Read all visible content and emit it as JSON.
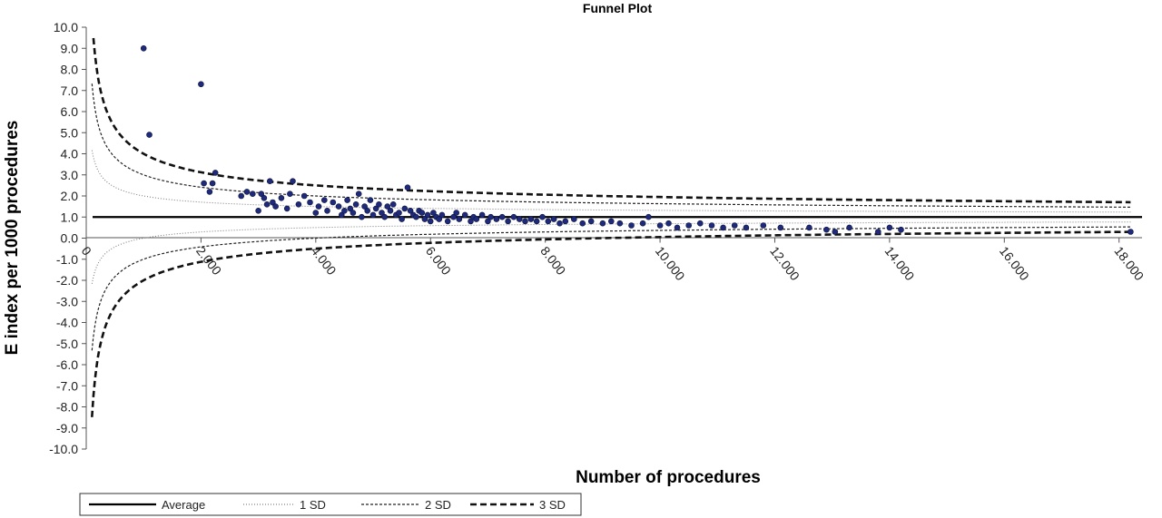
{
  "chart_data": {
    "type": "scatter",
    "title": "Funnel Plot",
    "xlabel": "Number of procedures",
    "ylabel": "E index per 1000  procedures",
    "xlim": [
      0,
      18400
    ],
    "ylim": [
      -10,
      10
    ],
    "x_ticks": [
      0,
      2000,
      4000,
      6000,
      8000,
      10000,
      12000,
      14000,
      16000,
      18000
    ],
    "x_tick_labels": [
      "0",
      "2.000",
      "4.000",
      "6.000",
      "8.000",
      "10.000",
      "12.000",
      "14.000",
      "16.000",
      "18.000"
    ],
    "y_ticks": [
      10,
      9,
      8,
      7,
      6,
      5,
      4,
      3,
      2,
      1,
      0,
      -1,
      -2,
      -3,
      -4,
      -5,
      -6,
      -7,
      -8,
      -9,
      -10
    ],
    "y_tick_labels": [
      "10.0",
      "9.0",
      "8.0",
      "7.0",
      "6.0",
      "5.0",
      "4.0",
      "3.0",
      "2.0",
      "1.0",
      "0.0",
      "-1.0",
      "-2.0",
      "-3.0",
      "-4.0",
      "-5.0",
      "-6.0",
      "-7.0",
      "-8.0",
      "-9.0",
      "-10.0"
    ],
    "average": 1.0,
    "sd_per_unit_at_1000_procedures": 1.0,
    "legend": [
      {
        "name": "Average",
        "style": "solid"
      },
      {
        "name": "1 SD",
        "style": "dotted"
      },
      {
        "name": "2 SD",
        "style": "dashed"
      },
      {
        "name": "3 SD",
        "style": "thick-dashed"
      }
    ],
    "legend_position": "bottom-left",
    "point_color": "#1f2a7a",
    "points": [
      [
        1000,
        9.0
      ],
      [
        1100,
        4.9
      ],
      [
        2000,
        7.3
      ],
      [
        2050,
        2.6
      ],
      [
        2150,
        2.2
      ],
      [
        2200,
        2.6
      ],
      [
        2250,
        3.1
      ],
      [
        2700,
        2.0
      ],
      [
        2800,
        2.2
      ],
      [
        2900,
        2.1
      ],
      [
        3000,
        1.3
      ],
      [
        3050,
        2.1
      ],
      [
        3100,
        1.9
      ],
      [
        3150,
        1.6
      ],
      [
        3200,
        2.7
      ],
      [
        3250,
        1.7
      ],
      [
        3300,
        1.5
      ],
      [
        3400,
        1.9
      ],
      [
        3500,
        1.4
      ],
      [
        3550,
        2.1
      ],
      [
        3600,
        2.7
      ],
      [
        3700,
        1.6
      ],
      [
        3800,
        2.0
      ],
      [
        3900,
        1.7
      ],
      [
        4000,
        1.2
      ],
      [
        4050,
        1.5
      ],
      [
        4150,
        1.8
      ],
      [
        4200,
        1.3
      ],
      [
        4300,
        1.7
      ],
      [
        4400,
        1.5
      ],
      [
        4450,
        1.1
      ],
      [
        4500,
        1.3
      ],
      [
        4550,
        1.8
      ],
      [
        4600,
        1.4
      ],
      [
        4650,
        1.2
      ],
      [
        4700,
        1.6
      ],
      [
        4750,
        2.1
      ],
      [
        4800,
        1.0
      ],
      [
        4850,
        1.5
      ],
      [
        4900,
        1.3
      ],
      [
        4950,
        1.8
      ],
      [
        5000,
        1.1
      ],
      [
        5050,
        1.4
      ],
      [
        5100,
        1.6
      ],
      [
        5150,
        1.2
      ],
      [
        5200,
        1.0
      ],
      [
        5250,
        1.5
      ],
      [
        5300,
        1.3
      ],
      [
        5350,
        1.6
      ],
      [
        5400,
        1.1
      ],
      [
        5450,
        1.2
      ],
      [
        5500,
        0.9
      ],
      [
        5550,
        1.4
      ],
      [
        5600,
        2.4
      ],
      [
        5650,
        1.3
      ],
      [
        5700,
        1.1
      ],
      [
        5750,
        1.0
      ],
      [
        5800,
        1.3
      ],
      [
        5850,
        1.2
      ],
      [
        5900,
        0.9
      ],
      [
        5950,
        1.1
      ],
      [
        6000,
        0.8
      ],
      [
        6050,
        1.2
      ],
      [
        6100,
        1.0
      ],
      [
        6150,
        0.9
      ],
      [
        6200,
        1.1
      ],
      [
        6300,
        0.8
      ],
      [
        6400,
        1.0
      ],
      [
        6450,
        1.2
      ],
      [
        6500,
        0.9
      ],
      [
        6600,
        1.1
      ],
      [
        6700,
        0.8
      ],
      [
        6750,
        1.0
      ],
      [
        6800,
        0.9
      ],
      [
        6900,
        1.1
      ],
      [
        7000,
        0.8
      ],
      [
        7050,
        1.0
      ],
      [
        7150,
        0.9
      ],
      [
        7250,
        1.0
      ],
      [
        7350,
        0.8
      ],
      [
        7450,
        1.0
      ],
      [
        7550,
        0.9
      ],
      [
        7650,
        0.8
      ],
      [
        7750,
        0.9
      ],
      [
        7850,
        0.8
      ],
      [
        7950,
        1.0
      ],
      [
        8050,
        0.8
      ],
      [
        8150,
        0.9
      ],
      [
        8250,
        0.7
      ],
      [
        8350,
        0.8
      ],
      [
        8500,
        0.9
      ],
      [
        8650,
        0.7
      ],
      [
        8800,
        0.8
      ],
      [
        9000,
        0.7
      ],
      [
        9150,
        0.8
      ],
      [
        9300,
        0.7
      ],
      [
        9500,
        0.6
      ],
      [
        9700,
        0.7
      ],
      [
        9800,
        1.0
      ],
      [
        10000,
        0.6
      ],
      [
        10150,
        0.7
      ],
      [
        10300,
        0.5
      ],
      [
        10500,
        0.6
      ],
      [
        10700,
        0.7
      ],
      [
        10900,
        0.6
      ],
      [
        11100,
        0.5
      ],
      [
        11300,
        0.6
      ],
      [
        11500,
        0.5
      ],
      [
        11800,
        0.6
      ],
      [
        12100,
        0.5
      ],
      [
        12600,
        0.5
      ],
      [
        12900,
        0.4
      ],
      [
        13050,
        0.3
      ],
      [
        13300,
        0.5
      ],
      [
        13800,
        0.3
      ],
      [
        14000,
        0.5
      ],
      [
        14200,
        0.4
      ],
      [
        18200,
        0.3
      ]
    ]
  }
}
